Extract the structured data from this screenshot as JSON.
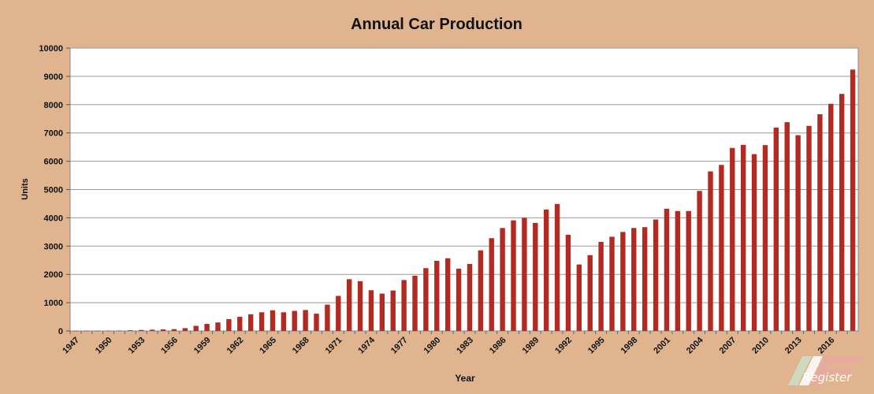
{
  "colors": {
    "background": "#dfb48f",
    "plot_area": "#ffffff",
    "bar": "#b32a22",
    "grid": "#9a9a9a"
  },
  "watermark": {
    "text": "Register"
  },
  "chart_data": {
    "type": "bar",
    "title": "Annual Car Production",
    "xlabel": "Year",
    "ylabel": "Units",
    "ylim": [
      0,
      10000
    ],
    "yticks": [
      0,
      1000,
      2000,
      3000,
      4000,
      5000,
      6000,
      7000,
      8000,
      9000,
      10000
    ],
    "xtick_labels": [
      "1947",
      "1950",
      "1953",
      "1956",
      "1959",
      "1962",
      "1965",
      "1968",
      "1971",
      "1974",
      "1977",
      "1980",
      "1983",
      "1986",
      "1989",
      "1992",
      "1995",
      "1998",
      "2001",
      "2004",
      "2007",
      "2010",
      "2013",
      "2016"
    ],
    "grid": true,
    "legend": "none",
    "categories": [
      "1947",
      "1948",
      "1949",
      "1950",
      "1951",
      "1952",
      "1953",
      "1954",
      "1955",
      "1956",
      "1957",
      "1958",
      "1959",
      "1960",
      "1961",
      "1962",
      "1963",
      "1964",
      "1965",
      "1966",
      "1967",
      "1968",
      "1969",
      "1970",
      "1971",
      "1972",
      "1973",
      "1974",
      "1975",
      "1976",
      "1977",
      "1978",
      "1979",
      "1980",
      "1981",
      "1982",
      "1983",
      "1984",
      "1985",
      "1986",
      "1987",
      "1988",
      "1989",
      "1990",
      "1991",
      "1992",
      "1993",
      "1994",
      "1995",
      "1996",
      "1997",
      "1998",
      "1999",
      "2000",
      "2001",
      "2002",
      "2003",
      "2004",
      "2005",
      "2006",
      "2007",
      "2008",
      "2009",
      "2010",
      "2011",
      "2012",
      "2013",
      "2014",
      "2015",
      "2016",
      "2017",
      "2018"
    ],
    "values": [
      3,
      5,
      8,
      10,
      15,
      25,
      35,
      45,
      55,
      65,
      100,
      180,
      250,
      300,
      420,
      500,
      590,
      660,
      730,
      660,
      710,
      740,
      610,
      930,
      1240,
      1830,
      1760,
      1440,
      1320,
      1430,
      1800,
      1950,
      2220,
      2480,
      2570,
      2200,
      2370,
      2850,
      3280,
      3640,
      3910,
      4000,
      3820,
      4290,
      4490,
      3400,
      2350,
      2680,
      3150,
      3330,
      3500,
      3640,
      3670,
      3940,
      4320,
      4240,
      4240,
      4950,
      5640,
      5870,
      6470,
      6580,
      6250,
      6570,
      7190,
      7380,
      6920,
      7250,
      7660,
      8030,
      8380,
      9240
    ]
  }
}
